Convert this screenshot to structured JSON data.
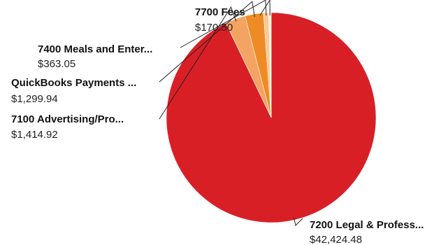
{
  "chart_data": {
    "type": "pie",
    "title": "",
    "slices": [
      {
        "label": "7200 Legal & Profess...",
        "value_text": "$42,424.48",
        "value": 42424.48,
        "color": "#d91f26"
      },
      {
        "label": "7100 Advertising/Pro...",
        "value_text": "$1,414.92",
        "value": 1414.92,
        "color": "#f3a463"
      },
      {
        "label": "QuickBooks Payments ...",
        "value_text": "$1,299.94",
        "value": 1299.94,
        "color": "#ef8b25"
      },
      {
        "label": "7400 Meals and Enter...",
        "value_text": "$363.05",
        "value": 363.05,
        "color": "#fbc992"
      },
      {
        "label": "7700 Fees",
        "value_text": "$170.50",
        "value": 170.5,
        "color": "#fff1dc"
      }
    ]
  }
}
